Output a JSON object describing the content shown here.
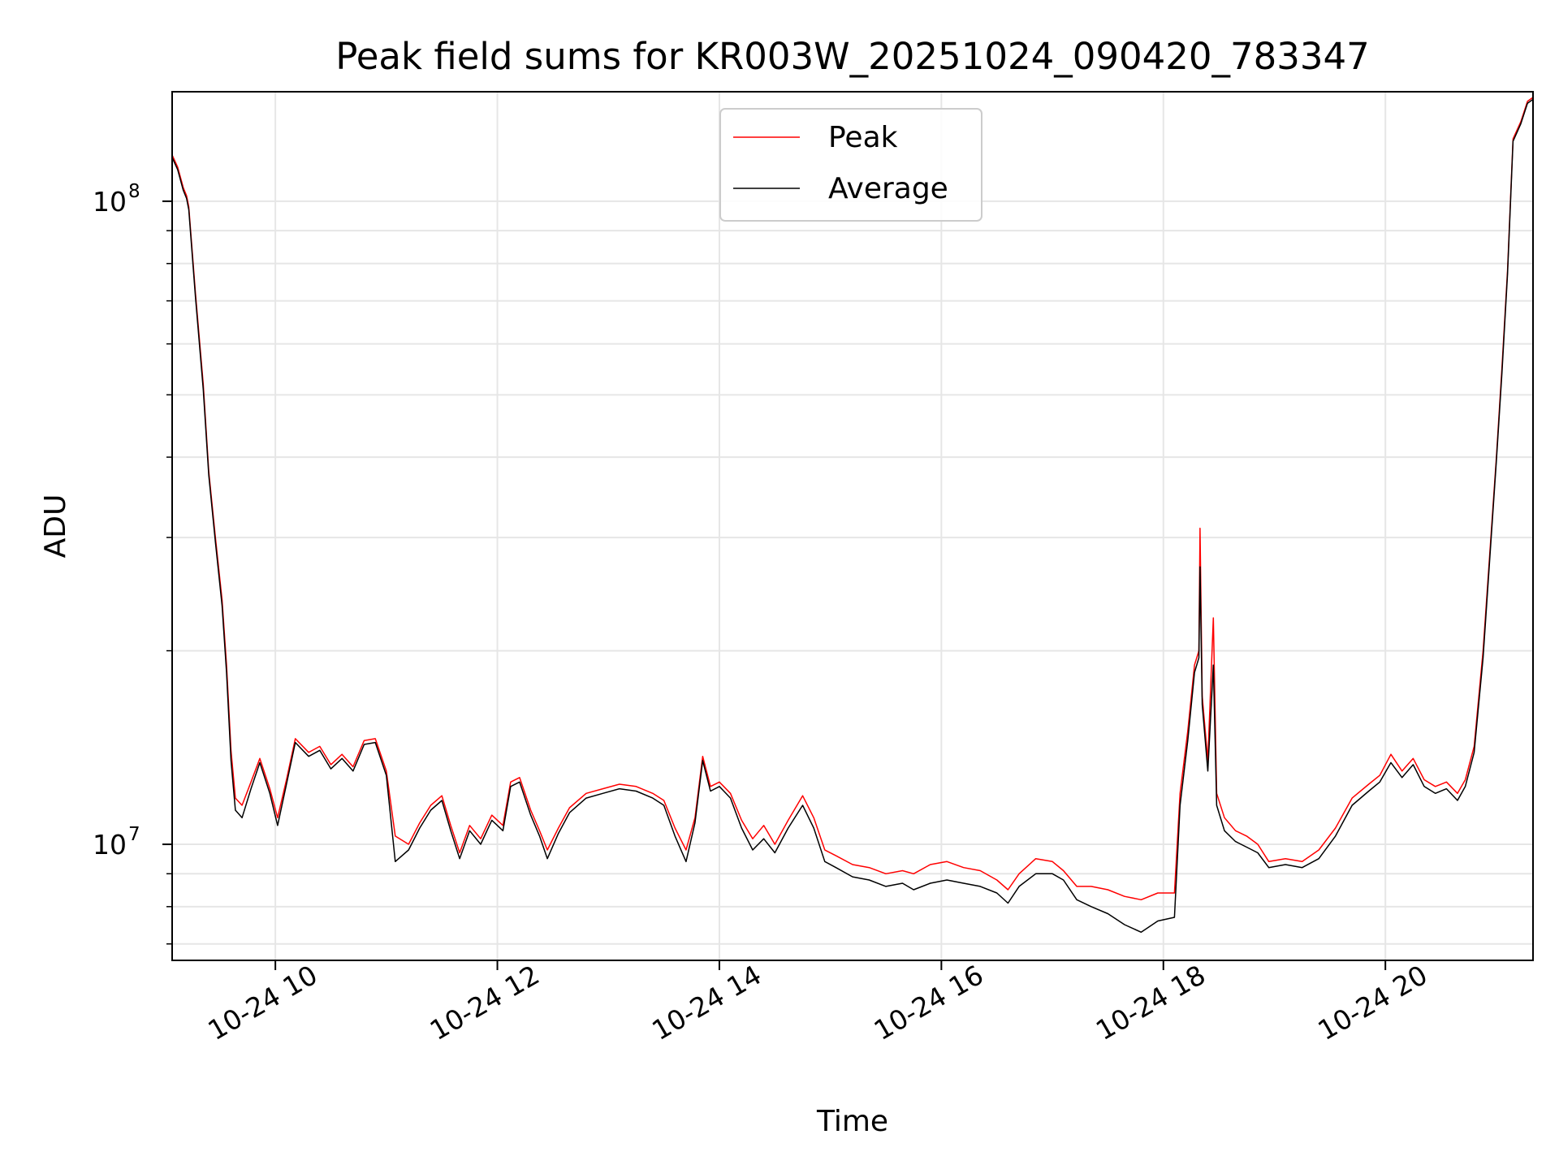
{
  "chart_data": {
    "type": "line",
    "title": "Peak field sums for KR003W_20251024_090420_783347",
    "xlabel": "Time",
    "ylabel": "ADU",
    "yscale": "log",
    "xlim_hours": [
      9.07,
      21.33
    ],
    "ylim": [
      6600000,
      148000000
    ],
    "x_ticks": [
      {
        "value": 10,
        "label": "10-24 10"
      },
      {
        "value": 12,
        "label": "10-24 12"
      },
      {
        "value": 14,
        "label": "10-24 14"
      },
      {
        "value": 16,
        "label": "10-24 16"
      },
      {
        "value": 18,
        "label": "10-24 18"
      },
      {
        "value": 20,
        "label": "10-24 20"
      }
    ],
    "y_major_ticks": [
      {
        "value": 10000000,
        "base": "10",
        "exp": "7"
      },
      {
        "value": 100000000,
        "base": "10",
        "exp": "8"
      }
    ],
    "y_minor_ticks": [
      7000000,
      8000000,
      9000000,
      20000000,
      30000000,
      40000000,
      50000000,
      60000000,
      70000000,
      80000000,
      90000000
    ],
    "grid": true,
    "legend": {
      "position": "upper center",
      "entries": [
        {
          "label": "Peak",
          "color": "#ff0000"
        },
        {
          "label": "Average",
          "color": "#000000"
        }
      ]
    },
    "series": [
      {
        "name": "Peak",
        "color": "#ff0000",
        "points": [
          [
            9.07,
            118000000
          ],
          [
            9.12,
            113000000
          ],
          [
            9.17,
            105000000
          ],
          [
            9.2,
            102000000
          ],
          [
            9.22,
            98000000
          ],
          [
            9.28,
            72000000
          ],
          [
            9.35,
            52000000
          ],
          [
            9.4,
            38000000
          ],
          [
            9.46,
            30000000
          ],
          [
            9.52,
            24000000
          ],
          [
            9.56,
            19000000
          ],
          [
            9.6,
            14000000
          ],
          [
            9.64,
            11800000
          ],
          [
            9.7,
            11500000
          ],
          [
            9.78,
            12500000
          ],
          [
            9.86,
            13600000
          ],
          [
            9.95,
            12200000
          ],
          [
            10.02,
            11000000
          ],
          [
            10.1,
            12600000
          ],
          [
            10.18,
            14600000
          ],
          [
            10.3,
            13900000
          ],
          [
            10.4,
            14200000
          ],
          [
            10.5,
            13300000
          ],
          [
            10.6,
            13800000
          ],
          [
            10.7,
            13200000
          ],
          [
            10.8,
            14500000
          ],
          [
            10.9,
            14600000
          ],
          [
            11.0,
            13000000
          ],
          [
            11.08,
            10300000
          ],
          [
            11.2,
            10000000
          ],
          [
            11.3,
            10800000
          ],
          [
            11.4,
            11500000
          ],
          [
            11.5,
            11900000
          ],
          [
            11.58,
            10700000
          ],
          [
            11.66,
            9700000
          ],
          [
            11.75,
            10700000
          ],
          [
            11.85,
            10200000
          ],
          [
            11.95,
            11100000
          ],
          [
            12.05,
            10700000
          ],
          [
            12.12,
            12500000
          ],
          [
            12.2,
            12700000
          ],
          [
            12.3,
            11300000
          ],
          [
            12.38,
            10500000
          ],
          [
            12.45,
            9800000
          ],
          [
            12.55,
            10600000
          ],
          [
            12.65,
            11400000
          ],
          [
            12.8,
            12000000
          ],
          [
            12.95,
            12200000
          ],
          [
            13.1,
            12400000
          ],
          [
            13.25,
            12300000
          ],
          [
            13.4,
            12000000
          ],
          [
            13.5,
            11700000
          ],
          [
            13.6,
            10600000
          ],
          [
            13.7,
            9800000
          ],
          [
            13.78,
            11000000
          ],
          [
            13.85,
            13700000
          ],
          [
            13.92,
            12300000
          ],
          [
            14.0,
            12500000
          ],
          [
            14.1,
            12000000
          ],
          [
            14.2,
            10900000
          ],
          [
            14.3,
            10200000
          ],
          [
            14.4,
            10700000
          ],
          [
            14.5,
            10000000
          ],
          [
            14.62,
            10900000
          ],
          [
            14.75,
            11900000
          ],
          [
            14.85,
            11000000
          ],
          [
            14.95,
            9800000
          ],
          [
            15.05,
            9600000
          ],
          [
            15.2,
            9300000
          ],
          [
            15.35,
            9200000
          ],
          [
            15.5,
            9000000
          ],
          [
            15.65,
            9100000
          ],
          [
            15.75,
            9000000
          ],
          [
            15.9,
            9300000
          ],
          [
            16.05,
            9400000
          ],
          [
            16.2,
            9200000
          ],
          [
            16.35,
            9100000
          ],
          [
            16.5,
            8800000
          ],
          [
            16.6,
            8500000
          ],
          [
            16.7,
            9000000
          ],
          [
            16.85,
            9500000
          ],
          [
            17.0,
            9400000
          ],
          [
            17.1,
            9100000
          ],
          [
            17.22,
            8600000
          ],
          [
            17.35,
            8600000
          ],
          [
            17.5,
            8500000
          ],
          [
            17.65,
            8300000
          ],
          [
            17.8,
            8200000
          ],
          [
            17.95,
            8400000
          ],
          [
            18.1,
            8400000
          ],
          [
            18.15,
            12000000
          ],
          [
            18.22,
            15000000
          ],
          [
            18.28,
            19000000
          ],
          [
            18.32,
            20000000
          ],
          [
            18.33,
            31000000
          ],
          [
            18.35,
            17000000
          ],
          [
            18.4,
            13500000
          ],
          [
            18.45,
            22500000
          ],
          [
            18.48,
            12000000
          ],
          [
            18.55,
            11000000
          ],
          [
            18.65,
            10500000
          ],
          [
            18.75,
            10300000
          ],
          [
            18.85,
            10000000
          ],
          [
            18.95,
            9400000
          ],
          [
            19.1,
            9500000
          ],
          [
            19.25,
            9400000
          ],
          [
            19.4,
            9800000
          ],
          [
            19.55,
            10600000
          ],
          [
            19.7,
            11800000
          ],
          [
            19.85,
            12400000
          ],
          [
            19.95,
            12800000
          ],
          [
            20.05,
            13800000
          ],
          [
            20.15,
            13000000
          ],
          [
            20.25,
            13600000
          ],
          [
            20.35,
            12600000
          ],
          [
            20.45,
            12300000
          ],
          [
            20.55,
            12500000
          ],
          [
            20.65,
            12000000
          ],
          [
            20.72,
            12600000
          ],
          [
            20.8,
            14200000
          ],
          [
            20.88,
            20000000
          ],
          [
            20.95,
            30000000
          ],
          [
            21.0,
            40000000
          ],
          [
            21.05,
            55000000
          ],
          [
            21.1,
            78000000
          ],
          [
            21.15,
            125000000
          ],
          [
            21.22,
            133000000
          ],
          [
            21.28,
            143000000
          ],
          [
            21.33,
            145000000
          ]
        ]
      },
      {
        "name": "Average",
        "color": "#000000",
        "points": [
          [
            9.07,
            117000000
          ],
          [
            9.12,
            112000000
          ],
          [
            9.17,
            104000000
          ],
          [
            9.2,
            101000000
          ],
          [
            9.22,
            97000000
          ],
          [
            9.28,
            71000000
          ],
          [
            9.35,
            51000000
          ],
          [
            9.4,
            37500000
          ],
          [
            9.46,
            29500000
          ],
          [
            9.52,
            23500000
          ],
          [
            9.56,
            18500000
          ],
          [
            9.6,
            13500000
          ],
          [
            9.64,
            11300000
          ],
          [
            9.7,
            11000000
          ],
          [
            9.78,
            12200000
          ],
          [
            9.86,
            13400000
          ],
          [
            9.95,
            12000000
          ],
          [
            10.02,
            10700000
          ],
          [
            10.1,
            12400000
          ],
          [
            10.18,
            14400000
          ],
          [
            10.3,
            13700000
          ],
          [
            10.4,
            14000000
          ],
          [
            10.5,
            13100000
          ],
          [
            10.6,
            13600000
          ],
          [
            10.7,
            13000000
          ],
          [
            10.8,
            14300000
          ],
          [
            10.9,
            14400000
          ],
          [
            11.0,
            12800000
          ],
          [
            11.08,
            9400000
          ],
          [
            11.2,
            9800000
          ],
          [
            11.3,
            10600000
          ],
          [
            11.4,
            11300000
          ],
          [
            11.5,
            11700000
          ],
          [
            11.58,
            10500000
          ],
          [
            11.66,
            9500000
          ],
          [
            11.75,
            10500000
          ],
          [
            11.85,
            10000000
          ],
          [
            11.95,
            10900000
          ],
          [
            12.05,
            10500000
          ],
          [
            12.12,
            12300000
          ],
          [
            12.2,
            12500000
          ],
          [
            12.3,
            11100000
          ],
          [
            12.38,
            10300000
          ],
          [
            12.45,
            9500000
          ],
          [
            12.55,
            10400000
          ],
          [
            12.65,
            11200000
          ],
          [
            12.8,
            11800000
          ],
          [
            12.95,
            12000000
          ],
          [
            13.1,
            12200000
          ],
          [
            13.25,
            12100000
          ],
          [
            13.4,
            11800000
          ],
          [
            13.5,
            11500000
          ],
          [
            13.6,
            10300000
          ],
          [
            13.7,
            9400000
          ],
          [
            13.78,
            10800000
          ],
          [
            13.85,
            13500000
          ],
          [
            13.92,
            12100000
          ],
          [
            14.0,
            12300000
          ],
          [
            14.1,
            11800000
          ],
          [
            14.2,
            10600000
          ],
          [
            14.3,
            9800000
          ],
          [
            14.4,
            10200000
          ],
          [
            14.5,
            9700000
          ],
          [
            14.62,
            10600000
          ],
          [
            14.75,
            11500000
          ],
          [
            14.85,
            10600000
          ],
          [
            14.95,
            9400000
          ],
          [
            15.05,
            9200000
          ],
          [
            15.2,
            8900000
          ],
          [
            15.35,
            8800000
          ],
          [
            15.5,
            8600000
          ],
          [
            15.65,
            8700000
          ],
          [
            15.75,
            8500000
          ],
          [
            15.9,
            8700000
          ],
          [
            16.05,
            8800000
          ],
          [
            16.2,
            8700000
          ],
          [
            16.35,
            8600000
          ],
          [
            16.5,
            8400000
          ],
          [
            16.6,
            8100000
          ],
          [
            16.7,
            8600000
          ],
          [
            16.85,
            9000000
          ],
          [
            17.0,
            9000000
          ],
          [
            17.1,
            8800000
          ],
          [
            17.22,
            8200000
          ],
          [
            17.35,
            8000000
          ],
          [
            17.5,
            7800000
          ],
          [
            17.65,
            7500000
          ],
          [
            17.8,
            7300000
          ],
          [
            17.95,
            7600000
          ],
          [
            18.1,
            7700000
          ],
          [
            18.15,
            11500000
          ],
          [
            18.22,
            14500000
          ],
          [
            18.28,
            18500000
          ],
          [
            18.32,
            19500000
          ],
          [
            18.33,
            27000000
          ],
          [
            18.35,
            16500000
          ],
          [
            18.4,
            13000000
          ],
          [
            18.45,
            19000000
          ],
          [
            18.48,
            11500000
          ],
          [
            18.55,
            10500000
          ],
          [
            18.65,
            10100000
          ],
          [
            18.75,
            9900000
          ],
          [
            18.85,
            9700000
          ],
          [
            18.95,
            9200000
          ],
          [
            19.1,
            9300000
          ],
          [
            19.25,
            9200000
          ],
          [
            19.4,
            9500000
          ],
          [
            19.55,
            10300000
          ],
          [
            19.7,
            11500000
          ],
          [
            19.85,
            12100000
          ],
          [
            19.95,
            12500000
          ],
          [
            20.05,
            13400000
          ],
          [
            20.15,
            12700000
          ],
          [
            20.25,
            13300000
          ],
          [
            20.35,
            12300000
          ],
          [
            20.45,
            12000000
          ],
          [
            20.55,
            12200000
          ],
          [
            20.65,
            11700000
          ],
          [
            20.72,
            12300000
          ],
          [
            20.8,
            13900000
          ],
          [
            20.88,
            19500000
          ],
          [
            20.95,
            29500000
          ],
          [
            21.0,
            39500000
          ],
          [
            21.05,
            54000000
          ],
          [
            21.1,
            77000000
          ],
          [
            21.15,
            124000000
          ],
          [
            21.22,
            132000000
          ],
          [
            21.28,
            142000000
          ],
          [
            21.33,
            144000000
          ]
        ]
      }
    ]
  }
}
